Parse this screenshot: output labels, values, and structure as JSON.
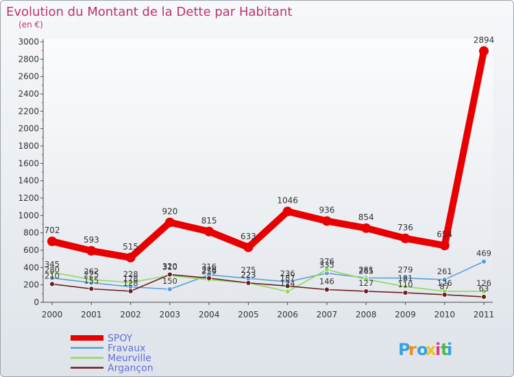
{
  "chart_data": {
    "type": "line",
    "title": "Evolution du Montant de la Dette par Habitant",
    "subtitle": "(en €)",
    "xlabel": "",
    "ylabel": "",
    "categories": [
      "2000",
      "2001",
      "2002",
      "2003",
      "2004",
      "2005",
      "2006",
      "2007",
      "2008",
      "2009",
      "2010",
      "2011"
    ],
    "ylim": [
      0,
      3000
    ],
    "yticks": [
      0,
      200,
      400,
      600,
      800,
      1000,
      1200,
      1400,
      1600,
      1800,
      2000,
      2200,
      2400,
      2600,
      2800,
      3000
    ],
    "grid": false,
    "legend_position": "bottom-left",
    "series": [
      {
        "name": "SPOY",
        "color": "#e80000",
        "label_color": "#333333",
        "values": [
          702,
          593,
          515,
          920,
          815,
          633,
          1046,
          936,
          854,
          736,
          654,
          2894
        ],
        "labels": [
          "702",
          "593",
          "515",
          "920",
          "815",
          "633",
          "1046",
          "936",
          "854",
          "736",
          "654",
          "2894"
        ]
      },
      {
        "name": "Fravaux",
        "color": "#5b9ed6",
        "label_color": "#333333",
        "values": [
          280,
          225,
          178,
          150,
          316,
          275,
          236,
          335,
          281,
          279,
          261,
          469
        ],
        "labels": [
          "280",
          "225",
          "178",
          "150",
          "316",
          "275",
          "236",
          "335",
          "281",
          "279",
          "261",
          "469"
        ]
      },
      {
        "name": "Meurville",
        "color": "#8fd85a",
        "label_color": "#333333",
        "values": [
          345,
          262,
          228,
          310,
          259,
          223,
          124,
          376,
          265,
          181,
          126,
          126
        ],
        "labels": [
          "345",
          "262",
          "228",
          "310",
          "259",
          "223",
          "124",
          "376",
          "265",
          "181",
          "126",
          "126"
        ]
      },
      {
        "name": "Argançon",
        "color": "#6b1f1f",
        "label_color": "#333333",
        "values": [
          210,
          155,
          128,
          320,
          278,
          223,
          187,
          146,
          127,
          110,
          87,
          63
        ],
        "labels": [
          "210",
          "155",
          "128",
          "320",
          "278",
          "223",
          "187",
          "146",
          "127",
          "110",
          "87",
          "63"
        ]
      }
    ]
  },
  "branding": {
    "logo_text": "Proxiti",
    "logo_colors": [
      "#3aa0e0",
      "#f08a1c",
      "#3aa0e0",
      "#f0c21c",
      "#d83a8c",
      "#4cb848",
      "#3aa0e0"
    ]
  }
}
